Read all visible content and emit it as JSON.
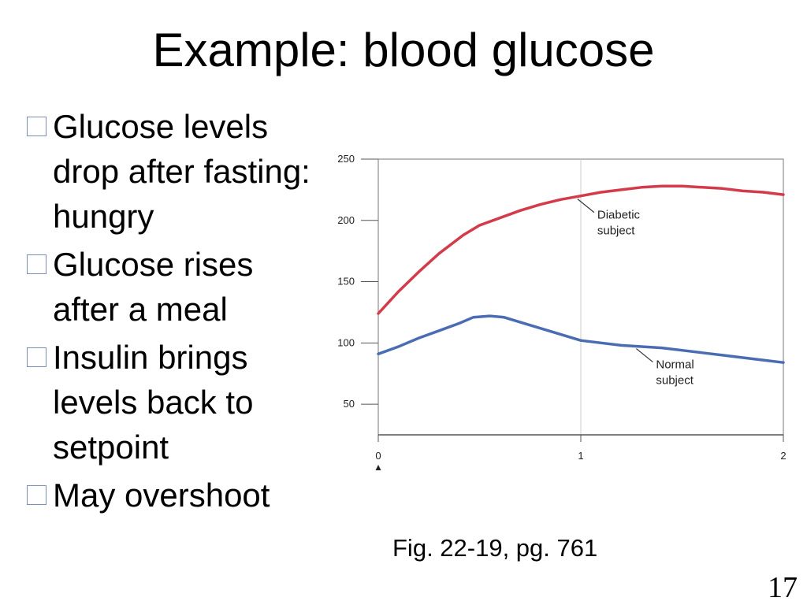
{
  "slide": {
    "title": "Example: blood glucose",
    "bullets": [
      "Glucose levels drop after fasting: hungry",
      "Glucose rises after a meal",
      "Insulin brings levels back to setpoint",
      "May overshoot"
    ],
    "caption": "Fig. 22-19, pg. 761",
    "page_number": "17",
    "bullet_color": "#7a8fb8"
  },
  "chart_data": {
    "type": "line",
    "xlim": [
      0,
      2
    ],
    "ylim": [
      25,
      250
    ],
    "x_ticks": [
      0,
      1,
      2
    ],
    "y_ticks": [
      50,
      100,
      150,
      200,
      250
    ],
    "grid": "vertical line at x=1",
    "series": [
      {
        "name": "Diabetic subject",
        "color": "#d33a4a",
        "x": [
          0,
          0.1,
          0.2,
          0.3,
          0.42,
          0.5,
          0.6,
          0.7,
          0.8,
          0.9,
          1.0,
          1.1,
          1.2,
          1.3,
          1.4,
          1.5,
          1.6,
          1.7,
          1.8,
          1.9,
          2.0
        ],
        "y": [
          124,
          142,
          158,
          173,
          188,
          196,
          202,
          208,
          213,
          217,
          220,
          223,
          225,
          227,
          228,
          228,
          227,
          226,
          224,
          223,
          221
        ]
      },
      {
        "name": "Normal subject",
        "color": "#4a6cb3",
        "x": [
          0,
          0.1,
          0.2,
          0.3,
          0.4,
          0.47,
          0.55,
          0.62,
          0.7,
          0.8,
          0.9,
          1.0,
          1.1,
          1.2,
          1.3,
          1.4,
          1.5,
          1.6,
          1.7,
          1.8,
          1.9,
          2.0
        ],
        "y": [
          91,
          97,
          104,
          110,
          116,
          121,
          122,
          121,
          117,
          112,
          107,
          102,
          100,
          98,
          97,
          96,
          94,
          92,
          90,
          88,
          86,
          84
        ]
      }
    ],
    "annotations": [
      {
        "lines": [
          "Diabetic",
          "subject"
        ],
        "series": 0,
        "at_x": 0.98
      },
      {
        "lines": [
          "Normal",
          "subject"
        ],
        "series": 1,
        "at_x": 1.27
      }
    ]
  }
}
